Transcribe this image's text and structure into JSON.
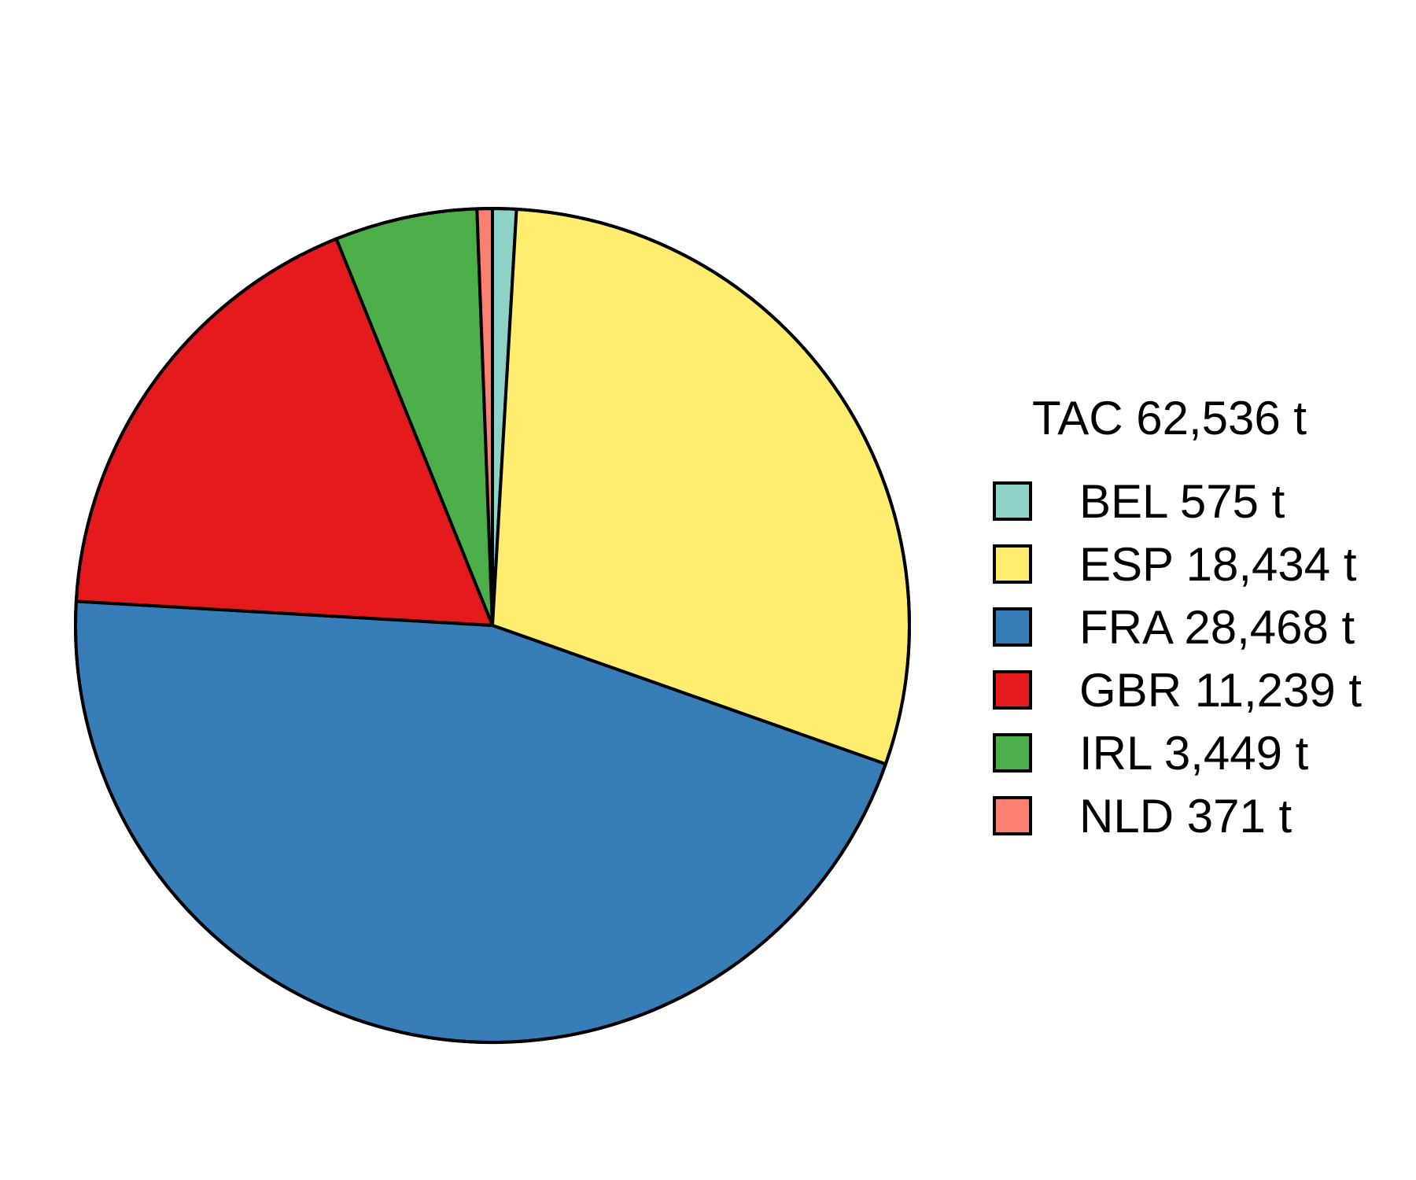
{
  "chart_data": {
    "type": "pie",
    "title": "",
    "legend_title": "TAC 62,536 t",
    "legend_position": "right",
    "start": "top",
    "direction": "clockwise",
    "slices": [
      {
        "name": "BEL",
        "value": 575,
        "label": "BEL 575 t",
        "color": "#8DD3C7"
      },
      {
        "name": "ESP",
        "value": 18434,
        "label": "ESP 18,434 t",
        "color": "#FFED6F"
      },
      {
        "name": "FRA",
        "value": 28468,
        "label": "FRA 28,468 t",
        "color": "#377EB8"
      },
      {
        "name": "GBR",
        "value": 11239,
        "label": "GBR 11,239 t",
        "color": "#E41A1C"
      },
      {
        "name": "IRL",
        "value": 3449,
        "label": "IRL 3,449 t",
        "color": "#4DAF4A"
      },
      {
        "name": "NLD",
        "value": 371,
        "label": "NLD 371 t",
        "color": "#FB8072"
      }
    ]
  }
}
